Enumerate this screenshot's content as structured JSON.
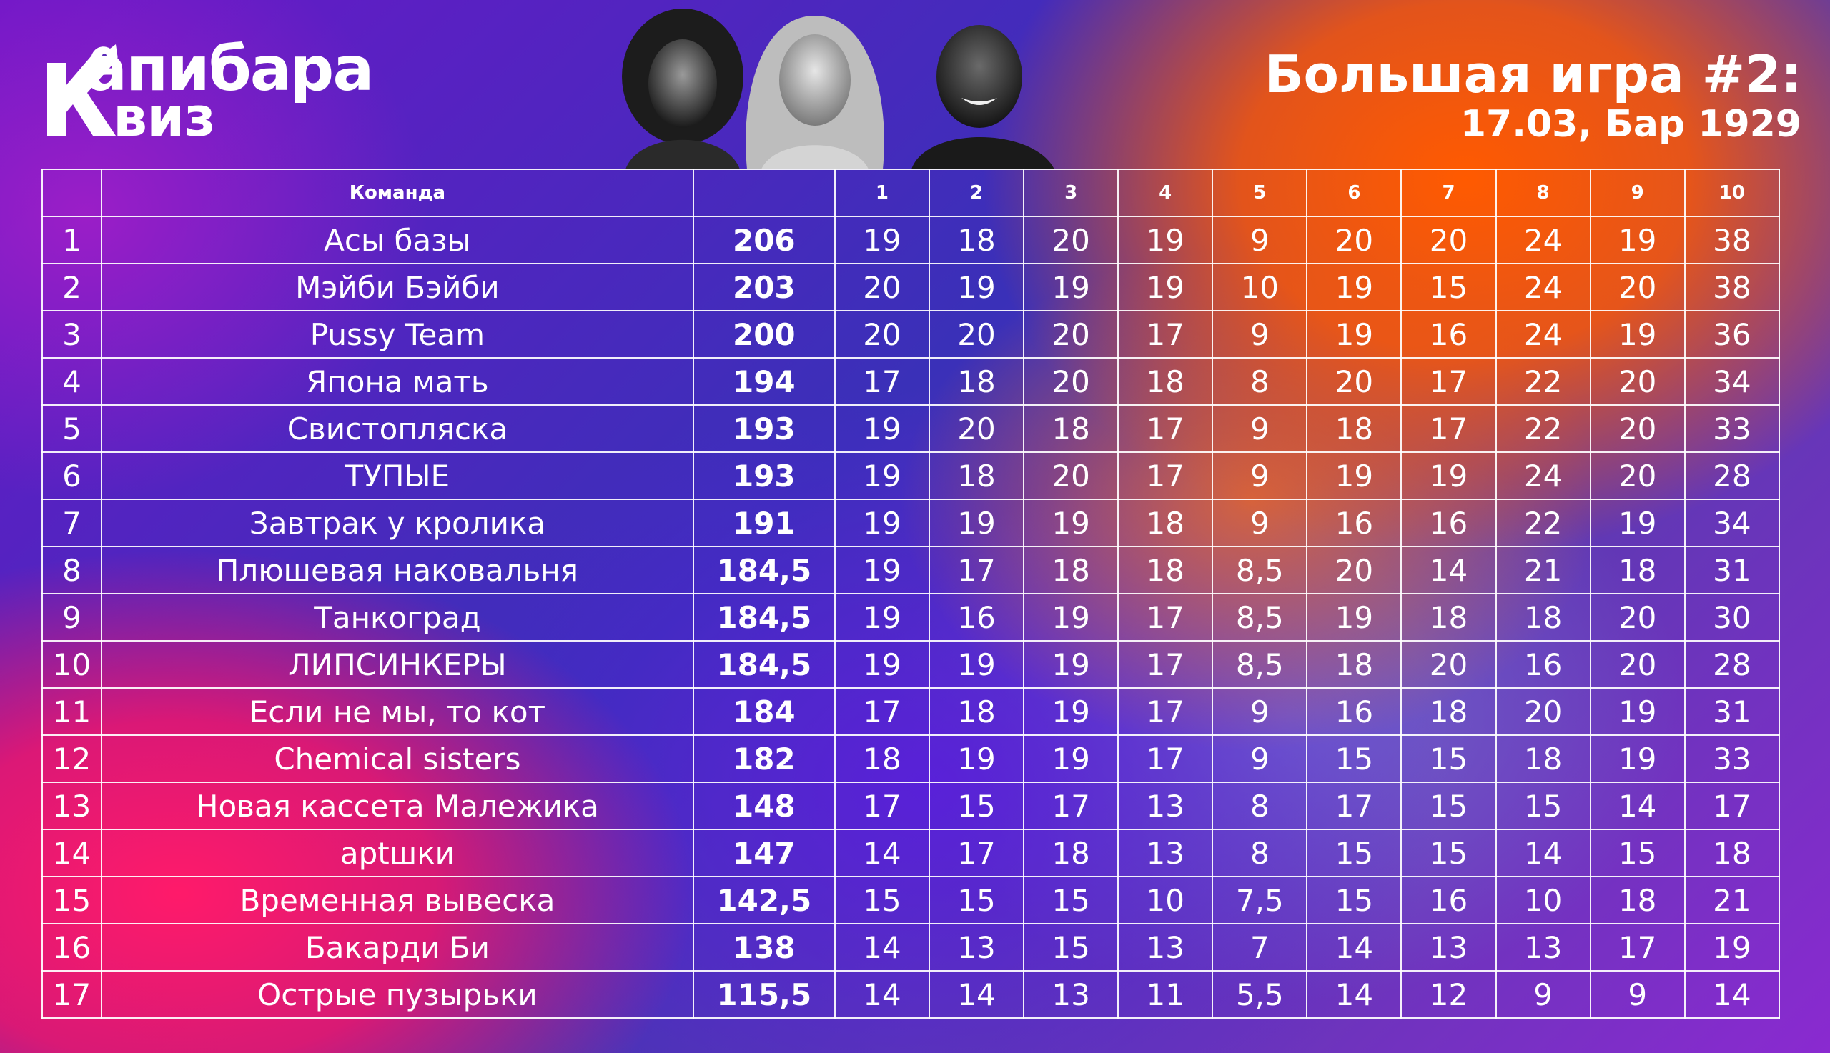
{
  "brand": {
    "line1": "апибара",
    "line2": "виз"
  },
  "header": {
    "title": "Большая игра #2:",
    "subtitle": "17.03, Бар 1929"
  },
  "table": {
    "team_header": "Команда",
    "round_headers": [
      "1",
      "2",
      "3",
      "4",
      "5",
      "6",
      "7",
      "8",
      "9",
      "10"
    ],
    "rows": [
      {
        "rank": "1",
        "team": "Асы базы",
        "total": "206",
        "rounds": [
          "19",
          "18",
          "20",
          "19",
          "9",
          "20",
          "20",
          "24",
          "19",
          "38"
        ]
      },
      {
        "rank": "2",
        "team": "Мэйби Бэйби",
        "total": "203",
        "rounds": [
          "20",
          "19",
          "19",
          "19",
          "10",
          "19",
          "15",
          "24",
          "20",
          "38"
        ]
      },
      {
        "rank": "3",
        "team": "Pussy Team",
        "total": "200",
        "rounds": [
          "20",
          "20",
          "20",
          "17",
          "9",
          "19",
          "16",
          "24",
          "19",
          "36"
        ]
      },
      {
        "rank": "4",
        "team": "Япона мать",
        "total": "194",
        "rounds": [
          "17",
          "18",
          "20",
          "18",
          "8",
          "20",
          "17",
          "22",
          "20",
          "34"
        ]
      },
      {
        "rank": "5",
        "team": "Свистопляска",
        "total": "193",
        "rounds": [
          "19",
          "20",
          "18",
          "17",
          "9",
          "18",
          "17",
          "22",
          "20",
          "33"
        ]
      },
      {
        "rank": "6",
        "team": "ТУПЫЕ",
        "total": "193",
        "rounds": [
          "19",
          "18",
          "20",
          "17",
          "9",
          "19",
          "19",
          "24",
          "20",
          "28"
        ]
      },
      {
        "rank": "7",
        "team": "Завтрак у кролика",
        "total": "191",
        "rounds": [
          "19",
          "19",
          "19",
          "18",
          "9",
          "16",
          "16",
          "22",
          "19",
          "34"
        ]
      },
      {
        "rank": "8",
        "team": "Плюшевая наковальня",
        "total": "184,5",
        "rounds": [
          "19",
          "17",
          "18",
          "18",
          "8,5",
          "20",
          "14",
          "21",
          "18",
          "31"
        ]
      },
      {
        "rank": "9",
        "team": "Танкоград",
        "total": "184,5",
        "rounds": [
          "19",
          "16",
          "19",
          "17",
          "8,5",
          "19",
          "18",
          "18",
          "20",
          "30"
        ]
      },
      {
        "rank": "10",
        "team": "ЛИПСИНКЕРЫ",
        "total": "184,5",
        "rounds": [
          "19",
          "19",
          "19",
          "17",
          "8,5",
          "18",
          "20",
          "16",
          "20",
          "28"
        ]
      },
      {
        "rank": "11",
        "team": "Если не мы, то кот",
        "total": "184",
        "rounds": [
          "17",
          "18",
          "19",
          "17",
          "9",
          "16",
          "18",
          "20",
          "19",
          "31"
        ]
      },
      {
        "rank": "12",
        "team": "Chemical sisters",
        "total": "182",
        "rounds": [
          "18",
          "19",
          "19",
          "17",
          "9",
          "15",
          "15",
          "18",
          "19",
          "33"
        ]
      },
      {
        "rank": "13",
        "team": "Новая кассета Малежика",
        "total": "148",
        "rounds": [
          "17",
          "15",
          "17",
          "13",
          "8",
          "17",
          "15",
          "15",
          "14",
          "17"
        ]
      },
      {
        "rank": "14",
        "team": "арtшки",
        "total": "147",
        "rounds": [
          "14",
          "17",
          "18",
          "13",
          "8",
          "15",
          "15",
          "14",
          "15",
          "18"
        ]
      },
      {
        "rank": "15",
        "team": "Временная вывеска",
        "total": "142,5",
        "rounds": [
          "15",
          "15",
          "15",
          "10",
          "7,5",
          "15",
          "16",
          "10",
          "18",
          "21"
        ]
      },
      {
        "rank": "16",
        "team": "Бакарди Би",
        "total": "138",
        "rounds": [
          "14",
          "13",
          "15",
          "13",
          "7",
          "14",
          "13",
          "13",
          "17",
          "19"
        ]
      },
      {
        "rank": "17",
        "team": "Острые пузырьки",
        "total": "115,5",
        "rounds": [
          "14",
          "14",
          "13",
          "11",
          "5,5",
          "14",
          "12",
          "9",
          "9",
          "14"
        ]
      }
    ]
  }
}
